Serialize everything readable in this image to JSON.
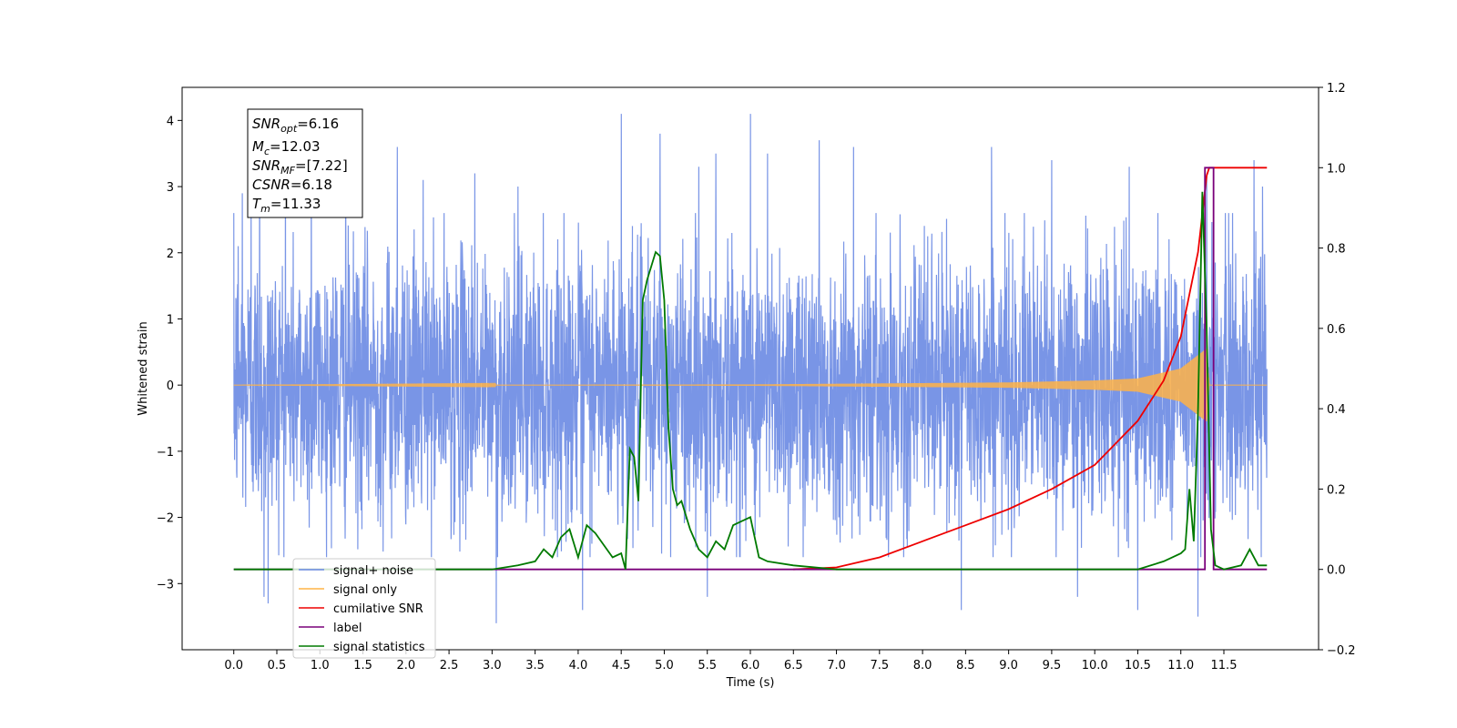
{
  "chart_data": {
    "type": "line",
    "xlabel": "Time (s)",
    "ylabel": "Whitened strain",
    "xlim": [
      -0.6,
      12.6
    ],
    "ylim_left": [
      -4,
      4.5
    ],
    "ylim_right": [
      -0.2,
      1.2
    ],
    "xticks": [
      0.0,
      0.5,
      1.0,
      1.5,
      2.0,
      2.5,
      3.0,
      3.5,
      4.0,
      4.5,
      5.0,
      5.5,
      6.0,
      6.5,
      7.0,
      7.5,
      8.0,
      8.5,
      9.0,
      9.5,
      10.0,
      10.5,
      11.0,
      11.5
    ],
    "xtick_labels": [
      "0.0",
      "0.5",
      "1.0",
      "1.5",
      "2.0",
      "2.5",
      "3.0",
      "3.5",
      "4.0",
      "4.5",
      "5.0",
      "5.5",
      "6.0",
      "6.5",
      "7.0",
      "7.5",
      "8.0",
      "8.5",
      "9.0",
      "9.5",
      "10.0",
      "10.5",
      "11.0",
      "11.5"
    ],
    "yticks_left": [
      -3,
      -2,
      -1,
      0,
      1,
      2,
      3,
      4
    ],
    "ytick_labels_left": [
      "−3",
      "−2",
      "−1",
      "0",
      "1",
      "2",
      "3",
      "4"
    ],
    "yticks_right": [
      -0.2,
      0.0,
      0.2,
      0.4,
      0.6,
      0.8,
      1.0,
      1.2
    ],
    "ytick_labels_right": [
      "−0.2",
      "0.0",
      "0.2",
      "0.4",
      "0.6",
      "0.8",
      "1.0",
      "1.2"
    ],
    "annotation": {
      "lines": [
        {
          "base": "SNR",
          "sub": "opt",
          "value": "=6.16"
        },
        {
          "base": "M",
          "sub": "c",
          "value": "=12.03"
        },
        {
          "base": "SNR",
          "sub": "MF",
          "value": "=[7.22]"
        },
        {
          "base": "CSNR",
          "sub": "",
          "value": "=6.18"
        },
        {
          "base": "T",
          "sub": "m",
          "value": "=11.33"
        }
      ]
    },
    "legend": {
      "placement": "lower-left",
      "entries": [
        "signal+ noise",
        "signal only",
        "cumilative SNR",
        "label",
        "signal statistics"
      ]
    },
    "series": [
      {
        "name": "signal+ noise",
        "axis": "left",
        "color": "#6a89e3",
        "style": "noise",
        "x_range": [
          0.0,
          12.0
        ],
        "amplitude_1sigma": 1.0,
        "peaks": [
          [
            0.05,
            2.1
          ],
          [
            0.1,
            2.9
          ],
          [
            0.2,
            3.0
          ],
          [
            0.3,
            3.6
          ],
          [
            0.35,
            -3.2
          ],
          [
            0.4,
            -3.3
          ],
          [
            0.6,
            3.3
          ],
          [
            0.9,
            3.4
          ],
          [
            1.3,
            3.5
          ],
          [
            1.9,
            3.6
          ],
          [
            2.2,
            3.1
          ],
          [
            2.8,
            3.2
          ],
          [
            3.05,
            -3.6
          ],
          [
            3.3,
            3.0
          ],
          [
            4.05,
            -3.4
          ],
          [
            4.5,
            4.1
          ],
          [
            4.95,
            3.8
          ],
          [
            5.4,
            3.3
          ],
          [
            5.5,
            -3.2
          ],
          [
            5.6,
            3.5
          ],
          [
            6.0,
            4.1
          ],
          [
            6.2,
            3.5
          ],
          [
            6.8,
            3.7
          ],
          [
            7.2,
            3.6
          ],
          [
            8.8,
            3.6
          ],
          [
            8.45,
            -3.4
          ],
          [
            9.5,
            3.4
          ],
          [
            10.4,
            3.3
          ],
          [
            10.5,
            -3.4
          ],
          [
            11.2,
            -3.5
          ],
          [
            11.3,
            3.2
          ],
          [
            11.85,
            3.4
          ],
          [
            11.95,
            3.0
          ],
          [
            9.8,
            -3.2
          ]
        ]
      },
      {
        "name": "signal only",
        "axis": "left",
        "color": "#ffb347",
        "style": "chirp",
        "x_range": [
          0.0,
          12.0
        ],
        "envelope": [
          [
            0.0,
            0.0
          ],
          [
            6.0,
            0.01
          ],
          [
            7.0,
            0.02
          ],
          [
            8.0,
            0.03
          ],
          [
            9.0,
            0.04
          ],
          [
            10.0,
            0.07
          ],
          [
            10.5,
            0.1
          ],
          [
            11.0,
            0.25
          ],
          [
            11.2,
            0.45
          ],
          [
            11.3,
            0.55
          ],
          [
            11.33,
            0.0
          ],
          [
            12.0,
            0.0
          ]
        ]
      },
      {
        "name": "cumilative SNR",
        "axis": "right",
        "color": "#ee0000",
        "x": [
          6.5,
          7.0,
          7.5,
          8.0,
          8.5,
          9.0,
          9.5,
          10.0,
          10.5,
          10.8,
          11.0,
          11.2,
          11.3,
          11.33,
          11.5,
          12.0
        ],
        "y": [
          0.0,
          0.005,
          0.03,
          0.07,
          0.11,
          0.15,
          0.2,
          0.26,
          0.37,
          0.47,
          0.58,
          0.79,
          0.98,
          1.0,
          1.0,
          1.0
        ]
      },
      {
        "name": "label",
        "axis": "right",
        "color": "#7a007a",
        "x": [
          0.0,
          11.28,
          11.28,
          11.38,
          11.38,
          11.52,
          11.52,
          12.0
        ],
        "y": [
          0.0,
          0.0,
          1.0,
          1.0,
          0.0,
          0.0,
          0.0,
          0.0
        ]
      },
      {
        "name": "signal statistics",
        "axis": "right",
        "color": "#007a00",
        "x": [
          0.0,
          2.5,
          3.0,
          3.3,
          3.5,
          3.6,
          3.7,
          3.8,
          3.9,
          4.0,
          4.1,
          4.2,
          4.3,
          4.4,
          4.5,
          4.55,
          4.6,
          4.65,
          4.7,
          4.75,
          4.8,
          4.9,
          4.95,
          5.0,
          5.05,
          5.1,
          5.15,
          5.2,
          5.3,
          5.4,
          5.5,
          5.6,
          5.7,
          5.8,
          5.9,
          6.0,
          6.1,
          6.2,
          6.5,
          7.0,
          7.5,
          9.6,
          10.5,
          10.8,
          11.0,
          11.05,
          11.1,
          11.15,
          11.2,
          11.25,
          11.3,
          11.35,
          11.4,
          11.5,
          11.7,
          11.8,
          11.9,
          12.0
        ],
        "y": [
          0.0,
          0.0,
          0.0,
          0.01,
          0.02,
          0.05,
          0.03,
          0.08,
          0.1,
          0.03,
          0.11,
          0.09,
          0.06,
          0.03,
          0.04,
          0.0,
          0.3,
          0.28,
          0.17,
          0.67,
          0.72,
          0.79,
          0.78,
          0.67,
          0.35,
          0.2,
          0.16,
          0.17,
          0.1,
          0.05,
          0.03,
          0.07,
          0.05,
          0.11,
          0.12,
          0.13,
          0.03,
          0.02,
          0.01,
          0.0,
          0.0,
          0.0,
          0.0,
          0.02,
          0.04,
          0.05,
          0.2,
          0.07,
          0.4,
          0.94,
          0.6,
          0.1,
          0.01,
          0.0,
          0.01,
          0.05,
          0.01,
          0.01
        ]
      }
    ]
  }
}
